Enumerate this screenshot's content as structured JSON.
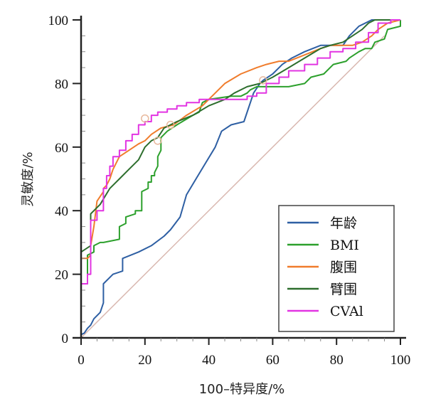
{
  "chart_data": {
    "type": "line",
    "title": "",
    "xlabel": "100–特异度/%",
    "ylabel": "灵敏度/%",
    "xlim": [
      0,
      100
    ],
    "ylim": [
      0,
      100
    ],
    "x_ticks": [
      0,
      20,
      40,
      60,
      80,
      100
    ],
    "y_ticks": [
      0,
      20,
      40,
      60,
      80,
      100
    ],
    "x_tick_labels": [
      "0",
      "20",
      "40",
      "60",
      "80",
      "100"
    ],
    "y_tick_labels": [
      "0",
      "20",
      "40",
      "60",
      "80",
      "100"
    ],
    "grid": false,
    "legend_position": "bottom-right",
    "reference_line": {
      "name": "diagonal",
      "color": "#d9b8b0",
      "points": [
        [
          0,
          0
        ],
        [
          95,
          95
        ]
      ]
    },
    "series": [
      {
        "name": "年龄",
        "color": "#2e5fa3",
        "points": [
          [
            0,
            1
          ],
          [
            1,
            1.5
          ],
          [
            2,
            3
          ],
          [
            3,
            4
          ],
          [
            4,
            6
          ],
          [
            6,
            8
          ],
          [
            7,
            11
          ],
          [
            7,
            17
          ],
          [
            10,
            20
          ],
          [
            13,
            21
          ],
          [
            13,
            25
          ],
          [
            18,
            27
          ],
          [
            22,
            29
          ],
          [
            26,
            32
          ],
          [
            28,
            34
          ],
          [
            31,
            38
          ],
          [
            33,
            45
          ],
          [
            36,
            50
          ],
          [
            39,
            55
          ],
          [
            42,
            60
          ],
          [
            44,
            65
          ],
          [
            47,
            67
          ],
          [
            51,
            68
          ],
          [
            54,
            77
          ],
          [
            56,
            80
          ],
          [
            57,
            81
          ],
          [
            60,
            83
          ],
          [
            63,
            86
          ],
          [
            66,
            88
          ],
          [
            70,
            90
          ],
          [
            75,
            92
          ],
          [
            82,
            92
          ],
          [
            84,
            95
          ],
          [
            87,
            98
          ],
          [
            91,
            100
          ],
          [
            95,
            100
          ],
          [
            100,
            100
          ]
        ]
      },
      {
        "name": "BMI",
        "color": "#2ca02c",
        "points": [
          [
            0,
            0
          ],
          [
            0,
            17
          ],
          [
            2,
            17
          ],
          [
            2,
            26
          ],
          [
            4,
            27
          ],
          [
            4,
            29
          ],
          [
            6,
            30
          ],
          [
            7,
            30
          ],
          [
            12,
            31
          ],
          [
            12,
            35
          ],
          [
            14,
            36
          ],
          [
            14,
            38
          ],
          [
            17,
            39
          ],
          [
            17,
            40
          ],
          [
            19,
            40
          ],
          [
            19,
            46
          ],
          [
            21,
            47
          ],
          [
            21,
            49
          ],
          [
            22,
            49
          ],
          [
            22,
            51
          ],
          [
            23,
            51
          ],
          [
            23,
            52
          ],
          [
            24,
            54
          ],
          [
            24,
            57
          ],
          [
            25,
            59
          ],
          [
            25,
            63
          ],
          [
            26,
            64
          ],
          [
            27,
            65
          ],
          [
            30,
            67
          ],
          [
            35,
            70
          ],
          [
            37,
            71
          ],
          [
            38,
            74
          ],
          [
            40,
            75
          ],
          [
            47,
            76
          ],
          [
            50,
            76
          ],
          [
            52,
            77
          ],
          [
            53,
            78
          ],
          [
            55,
            79
          ],
          [
            65,
            79
          ],
          [
            70,
            80
          ],
          [
            72,
            82
          ],
          [
            76,
            83
          ],
          [
            79,
            86
          ],
          [
            83,
            87
          ],
          [
            84,
            88
          ],
          [
            87,
            90
          ],
          [
            89,
            91
          ],
          [
            91,
            91
          ],
          [
            92,
            93
          ],
          [
            95,
            94
          ],
          [
            96,
            97
          ],
          [
            100,
            98
          ],
          [
            100,
            100
          ]
        ]
      },
      {
        "name": "腹围",
        "color": "#f07c2c",
        "points": [
          [
            0,
            0
          ],
          [
            0,
            25
          ],
          [
            2,
            25
          ],
          [
            3,
            26
          ],
          [
            3,
            29
          ],
          [
            4,
            35
          ],
          [
            5,
            43
          ],
          [
            7,
            46
          ],
          [
            7,
            47
          ],
          [
            8,
            48
          ],
          [
            9,
            50
          ],
          [
            10,
            53
          ],
          [
            12,
            57
          ],
          [
            15,
            59
          ],
          [
            18,
            61
          ],
          [
            20,
            62
          ],
          [
            22,
            64
          ],
          [
            25,
            66
          ],
          [
            29,
            67
          ],
          [
            33,
            70
          ],
          [
            38,
            73
          ],
          [
            42,
            77
          ],
          [
            45,
            80
          ],
          [
            50,
            83
          ],
          [
            55,
            85
          ],
          [
            58,
            86
          ],
          [
            62,
            87
          ],
          [
            65,
            87
          ],
          [
            70,
            89
          ],
          [
            75,
            91
          ],
          [
            78,
            92
          ],
          [
            85,
            92
          ],
          [
            88,
            93
          ],
          [
            91,
            95
          ],
          [
            93,
            97
          ],
          [
            96,
            99
          ],
          [
            100,
            100
          ]
        ]
      },
      {
        "name": "臂围",
        "color": "#2d6e2d",
        "points": [
          [
            0,
            0
          ],
          [
            0,
            27
          ],
          [
            3,
            29
          ],
          [
            3,
            39
          ],
          [
            6,
            42
          ],
          [
            9,
            47
          ],
          [
            12,
            50
          ],
          [
            15,
            53
          ],
          [
            18,
            56
          ],
          [
            20,
            60
          ],
          [
            22,
            62
          ],
          [
            24,
            63
          ],
          [
            26,
            66
          ],
          [
            30,
            68
          ],
          [
            35,
            70
          ],
          [
            40,
            73
          ],
          [
            45,
            75
          ],
          [
            48,
            77
          ],
          [
            52,
            79
          ],
          [
            56,
            80
          ],
          [
            60,
            82
          ],
          [
            65,
            85
          ],
          [
            70,
            88
          ],
          [
            75,
            91
          ],
          [
            78,
            92
          ],
          [
            82,
            93
          ],
          [
            85,
            95
          ],
          [
            88,
            97
          ],
          [
            90,
            99
          ],
          [
            92,
            100
          ],
          [
            100,
            100
          ]
        ]
      },
      {
        "name": "CVAl",
        "color": "#e234e2",
        "points": [
          [
            0,
            0
          ],
          [
            0,
            17
          ],
          [
            2,
            17
          ],
          [
            2,
            20
          ],
          [
            3,
            20
          ],
          [
            3,
            37
          ],
          [
            5,
            37
          ],
          [
            5,
            40
          ],
          [
            7,
            40
          ],
          [
            7,
            47
          ],
          [
            8,
            47
          ],
          [
            8,
            51
          ],
          [
            9,
            51
          ],
          [
            9,
            54
          ],
          [
            10,
            54
          ],
          [
            10,
            57
          ],
          [
            12,
            57
          ],
          [
            12,
            59
          ],
          [
            14,
            59
          ],
          [
            14,
            62
          ],
          [
            16,
            62
          ],
          [
            16,
            64
          ],
          [
            18,
            64
          ],
          [
            18,
            67
          ],
          [
            20,
            67
          ],
          [
            20,
            68
          ],
          [
            22,
            68
          ],
          [
            22,
            70
          ],
          [
            24,
            70
          ],
          [
            24,
            71
          ],
          [
            27,
            71
          ],
          [
            27,
            72
          ],
          [
            30,
            72
          ],
          [
            30,
            73
          ],
          [
            33,
            73
          ],
          [
            33,
            74
          ],
          [
            37,
            74
          ],
          [
            37,
            75
          ],
          [
            40,
            75
          ],
          [
            45,
            75
          ],
          [
            47,
            75
          ],
          [
            52,
            75
          ],
          [
            52,
            76
          ],
          [
            55,
            76
          ],
          [
            55,
            77
          ],
          [
            58,
            77
          ],
          [
            58,
            80
          ],
          [
            62,
            80
          ],
          [
            62,
            82
          ],
          [
            65,
            82
          ],
          [
            65,
            84
          ],
          [
            70,
            84
          ],
          [
            70,
            86
          ],
          [
            74,
            86
          ],
          [
            74,
            88
          ],
          [
            78,
            88
          ],
          [
            78,
            90
          ],
          [
            82,
            90
          ],
          [
            82,
            91
          ],
          [
            86,
            91
          ],
          [
            86,
            93
          ],
          [
            90,
            93
          ],
          [
            90,
            96
          ],
          [
            93,
            96
          ],
          [
            93,
            99
          ],
          [
            97,
            99
          ],
          [
            97,
            100
          ],
          [
            100,
            100
          ]
        ]
      }
    ],
    "markers": [
      {
        "series": "腹围",
        "x": 20,
        "y": 69,
        "color": "#e8b89c"
      },
      {
        "series": "腹围",
        "x": 28,
        "y": 67,
        "color": "#e8b89c"
      },
      {
        "series": "臂围",
        "x": 24,
        "y": 62,
        "color": "#e8b89c"
      },
      {
        "series": "CVAl",
        "x": 57,
        "y": 81,
        "color": "#e8b89c"
      }
    ]
  }
}
